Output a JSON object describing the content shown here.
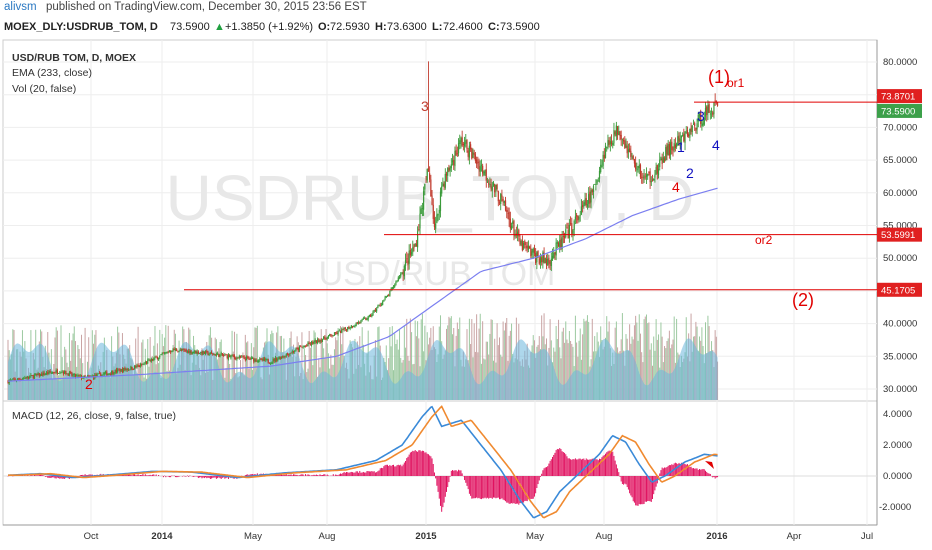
{
  "header": {
    "user": "alivsm",
    "published": "published on TradingView.com, December 30, 2015 23:56 EST"
  },
  "symbol_bar": {
    "symbol": "MOEX_DLY:USDRUB_TOM, D",
    "last": "73.5900",
    "change": "+1.3850 (+1.92%)",
    "o_label": "O:",
    "o": "72.5930",
    "h_label": "H:",
    "h": "73.6300",
    "l_label": "L:",
    "l": "72.4600",
    "c_label": "C:",
    "c": "73.5900"
  },
  "legend": {
    "title": "USD/RUB TOM, D, MOEX",
    "ema": "EMA (233, close)",
    "vol": "Vol (20, false)",
    "macd": "MACD (12, 26, close, 9, false, true)"
  },
  "watermark": {
    "big": "USDRUB_TOM, D",
    "small": "USD/RUB TOM"
  },
  "colors": {
    "candle_up": "#3a9a3a",
    "candle_down": "#c0392b",
    "ema": "#7b7ff0",
    "volume": "#6cb6dd",
    "volume_bar": "#8fbfd8",
    "red_line": "#e00000",
    "macd": "#3a8ad8",
    "signal": "#f08a30",
    "hist": "#e0115f",
    "label_red": "#e00000",
    "label_blue": "#1010c0",
    "price_tag_red": "#e02020",
    "price_tag_green": "#3ca04a"
  },
  "chart_data": {
    "type": "candlestick",
    "x_ticks": [
      "Oct",
      "2014",
      "May",
      "Aug",
      "2015",
      "May",
      "Aug",
      "2016",
      "Apr",
      "Jul"
    ],
    "y_ticks": [
      "80.0000",
      "75.0000",
      "70.0000",
      "65.0000",
      "60.0000",
      "55.0000",
      "50.0000",
      "45.0000",
      "40.0000",
      "35.0000",
      "30.0000"
    ],
    "y_range": [
      28,
      82
    ],
    "macd_ticks": [
      "4.0000",
      "2.0000",
      "0.0000",
      "-2.0000"
    ],
    "macd_range": [
      -2.9,
      4.7
    ],
    "price_path": [
      [
        0,
        31.2
      ],
      [
        0.08,
        32.8
      ],
      [
        0.1,
        32.0
      ],
      [
        0.12,
        31.7
      ],
      [
        0.2,
        33.5
      ],
      [
        0.25,
        36.0
      ],
      [
        0.3,
        35.5
      ],
      [
        0.35,
        34.8
      ],
      [
        0.4,
        34.2
      ],
      [
        0.45,
        36.5
      ],
      [
        0.5,
        38.5
      ],
      [
        0.55,
        41.0
      ],
      [
        0.58,
        44.5
      ],
      [
        0.6,
        48.0
      ],
      [
        0.62,
        52.0
      ],
      [
        0.63,
        58.0
      ],
      [
        0.64,
        64.0
      ],
      [
        0.65,
        54.0
      ],
      [
        0.66,
        61.0
      ],
      [
        0.69,
        68.0
      ],
      [
        0.72,
        64.0
      ],
      [
        0.75,
        59.0
      ],
      [
        0.78,
        52.0
      ],
      [
        0.8,
        50.5
      ],
      [
        0.82,
        49.5
      ],
      [
        0.84,
        52.0
      ],
      [
        0.86,
        55.0
      ],
      [
        0.89,
        60.0
      ],
      [
        0.91,
        67.0
      ],
      [
        0.93,
        70.0
      ],
      [
        0.95,
        65.0
      ],
      [
        0.97,
        62.0
      ],
      [
        0.99,
        63.5
      ],
      [
        1,
        66.0
      ],
      [
        1.03,
        68.5
      ],
      [
        1.06,
        72.0
      ],
      [
        1.08,
        73.59
      ]
    ],
    "price_path_note": "",
    "ema_path": [
      [
        0,
        31.2
      ],
      [
        0.2,
        32.2
      ],
      [
        0.4,
        33.5
      ],
      [
        0.5,
        35.0
      ],
      [
        0.58,
        38.0
      ],
      [
        0.65,
        43.0
      ],
      [
        0.72,
        48.0
      ],
      [
        0.8,
        50.0
      ],
      [
        0.88,
        53.0
      ],
      [
        0.95,
        56.5
      ],
      [
        1.02,
        59.0
      ],
      [
        1.08,
        60.7
      ]
    ],
    "spike": {
      "high": 80.1,
      "close": 63.2
    },
    "horizontal_levels": [
      {
        "value": 73.8701,
        "label": "73.8701",
        "color": "#e02020"
      },
      {
        "value": 73.59,
        "label": "73.5900",
        "color": "#3ca04a"
      },
      {
        "value": 53.5991,
        "label": "53.5991",
        "color": "#e02020"
      },
      {
        "value": 45.1705,
        "label": "45.1705",
        "color": "#e02020"
      }
    ],
    "annotations": [
      {
        "text": "(1)",
        "color": "#e00000"
      },
      {
        "text": "or1",
        "color": "#e00000"
      },
      {
        "text": "3",
        "color": "#c0392b"
      },
      {
        "text": "or2",
        "color": "#e00000"
      },
      {
        "text": "(2)",
        "color": "#e00000"
      },
      {
        "text": "2",
        "color": "#e00000"
      },
      {
        "text": "1",
        "color": "#1010c0"
      },
      {
        "text": "2",
        "color": "#1010c0"
      },
      {
        "text": "3",
        "color": "#1010c0"
      },
      {
        "text": "4",
        "color": "#1010c0"
      },
      {
        "text": "4",
        "color": "#e00000"
      }
    ]
  }
}
